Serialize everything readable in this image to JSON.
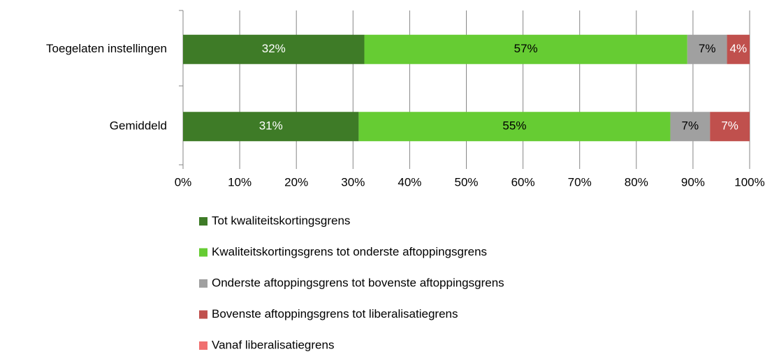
{
  "chart_data": {
    "type": "bar",
    "orientation": "horizontal",
    "stacked": true,
    "categories": [
      "Toegelaten instellingen",
      "Gemiddeld"
    ],
    "series": [
      {
        "name": "Tot kwaliteitskortingsgrens",
        "color": "#3e7b27",
        "values": [
          32,
          31
        ],
        "value_labels": [
          "32%",
          "31%"
        ]
      },
      {
        "name": "Kwaliteitskortingsgrens tot onderste aftoppingsgrens",
        "color": "#66cc33",
        "values": [
          57,
          55
        ],
        "value_labels": [
          "57%",
          "55%"
        ]
      },
      {
        "name": "Onderste aftoppingsgrens tot bovenste aftoppingsgrens",
        "color": "#a0a0a0",
        "values": [
          7,
          7
        ],
        "value_labels": [
          "7%",
          "7%"
        ]
      },
      {
        "name": "Bovenste aftoppingsgrens tot liberalisatiegrens",
        "color": "#c0504d",
        "values": [
          4,
          7
        ],
        "value_labels": [
          "4%",
          "7%"
        ]
      },
      {
        "name": "Vanaf liberalisatiegrens",
        "color": "#f07070",
        "values": [
          0,
          0
        ]
      }
    ],
    "xlim": [
      0,
      100
    ],
    "xticks": [
      {
        "value": 0,
        "label": "0%"
      },
      {
        "value": 10,
        "label": "10%"
      },
      {
        "value": 20,
        "label": "20%"
      },
      {
        "value": 30,
        "label": "30%"
      },
      {
        "value": 40,
        "label": "40%"
      },
      {
        "value": 50,
        "label": "50%"
      },
      {
        "value": 60,
        "label": "60%"
      },
      {
        "value": 70,
        "label": "70%"
      },
      {
        "value": 80,
        "label": "80%"
      },
      {
        "value": 90,
        "label": "90%"
      },
      {
        "value": 100,
        "label": "100%"
      }
    ],
    "grid": true,
    "legend": "bottom"
  }
}
